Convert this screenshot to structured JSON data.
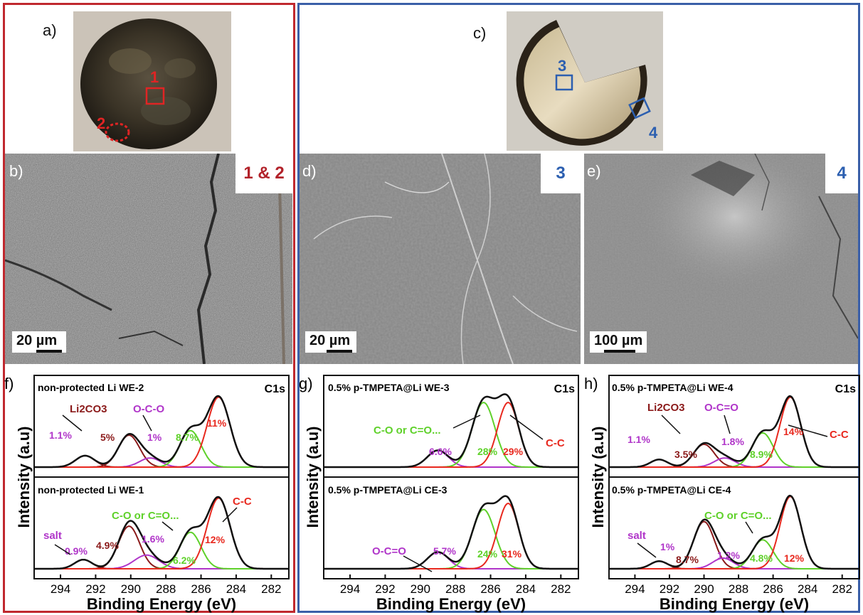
{
  "panel_labels": {
    "a": "a)",
    "b": "b)",
    "c": "c)",
    "d": "d)",
    "e": "e)",
    "f": "f)",
    "g": "g)",
    "h": "h)"
  },
  "photo_a": {
    "markers": [
      "1",
      "2"
    ],
    "marker_color": "#e02424"
  },
  "photo_c": {
    "markers": [
      "3",
      "4"
    ],
    "marker_color": "#2c5fb0"
  },
  "sem": {
    "b": {
      "tag": "1 & 2",
      "tag_color": "#b2222a",
      "scale": "20 µm"
    },
    "d": {
      "tag": "3",
      "tag_color": "#2c5fb0",
      "scale": "20 µm"
    },
    "e": {
      "tag": "4",
      "tag_color": "#2c5fb0",
      "scale": "100 µm"
    }
  },
  "colors": {
    "envelope": "#111111",
    "raw": "#111111",
    "c_c": "#e8281e",
    "c_o": "#5fd12a",
    "o_c_o": "#b035c9",
    "li2co3": "#8b1a1a",
    "salt": "#b035c9"
  },
  "chart_data": [
    {
      "type": "line",
      "id": "f",
      "xlabel": "Binding Energy (eV)",
      "ylabel": "Intensity (a.u)",
      "xlim": [
        295.5,
        281
      ],
      "xticks": [
        294,
        292,
        290,
        288,
        286,
        284,
        282
      ],
      "subplots": [
        {
          "title": "non-protected Li WE-2",
          "tag": "C1s",
          "components": [
            {
              "name": "salt",
              "center": 292.6,
              "height": 0.15,
              "sigma": 0.55,
              "color": "#8b1a1a"
            },
            {
              "name": "Li2CO3",
              "center": 290.1,
              "height": 0.42,
              "sigma": 0.6,
              "color": "#8b1a1a"
            },
            {
              "name": "O-C-O",
              "center": 288.9,
              "height": 0.12,
              "sigma": 0.6,
              "color": "#b035c9"
            },
            {
              "name": "C-O",
              "center": 286.6,
              "height": 0.48,
              "sigma": 0.6,
              "color": "#5fd12a"
            },
            {
              "name": "C-C",
              "center": 285.0,
              "height": 0.92,
              "sigma": 0.65,
              "color": "#e8281e"
            }
          ],
          "annotations": [
            {
              "text": "1.1%",
              "color": "#b035c9"
            },
            {
              "text": "Li2CO3",
              "color": "#8b1a1a"
            },
            {
              "text": "5%",
              "color": "#8b1a1a"
            },
            {
              "text": "O-C-O",
              "color": "#b035c9"
            },
            {
              "text": "1%",
              "color": "#b035c9"
            },
            {
              "text": "8.7%",
              "color": "#5fd12a"
            },
            {
              "text": "11%",
              "color": "#e8281e"
            }
          ]
        },
        {
          "title": "non-protected Li WE-1",
          "tag": "",
          "components": [
            {
              "name": "salt",
              "center": 292.7,
              "height": 0.12,
              "sigma": 0.5,
              "color": "#8b1a1a"
            },
            {
              "name": "Li2CO3",
              "center": 290.1,
              "height": 0.56,
              "sigma": 0.6,
              "color": "#8b1a1a"
            },
            {
              "name": "O-C-O",
              "center": 289.1,
              "height": 0.18,
              "sigma": 0.7,
              "color": "#b035c9"
            },
            {
              "name": "C-O",
              "center": 286.6,
              "height": 0.48,
              "sigma": 0.6,
              "color": "#5fd12a"
            },
            {
              "name": "C-C",
              "center": 285.0,
              "height": 0.93,
              "sigma": 0.65,
              "color": "#e8281e"
            }
          ],
          "annotations": [
            {
              "text": "salt",
              "color": "#b035c9"
            },
            {
              "text": "0.9%",
              "color": "#b035c9"
            },
            {
              "text": "4.9%",
              "color": "#8b1a1a"
            },
            {
              "text": "1.6%",
              "color": "#b035c9"
            },
            {
              "text": "C-O or C=O...",
              "color": "#5fd12a"
            },
            {
              "text": "6.2%",
              "color": "#5fd12a"
            },
            {
              "text": "C-C",
              "color": "#e8281e"
            },
            {
              "text": "12%",
              "color": "#e8281e"
            }
          ]
        }
      ]
    },
    {
      "type": "line",
      "id": "g",
      "xlabel": "Binding Energy (eV)",
      "ylabel": "Intensity (a.u)",
      "xlim": [
        295.5,
        281
      ],
      "xticks": [
        294,
        292,
        290,
        288,
        286,
        284,
        282
      ],
      "subplots": [
        {
          "title": "0.5% p-TMPETA@Li WE-3",
          "tag": "C1s",
          "components": [
            {
              "name": "O-C=O",
              "center": 289.0,
              "height": 0.22,
              "sigma": 0.6,
              "color": "#b035c9"
            },
            {
              "name": "C-O",
              "center": 286.4,
              "height": 0.85,
              "sigma": 0.65,
              "color": "#5fd12a"
            },
            {
              "name": "C-C",
              "center": 285.0,
              "height": 0.85,
              "sigma": 0.6,
              "color": "#e8281e"
            }
          ],
          "annotations": [
            {
              "text": "C-O or C=O...",
              "color": "#5fd12a"
            },
            {
              "text": "6.6%",
              "color": "#b035c9"
            },
            {
              "text": "28%",
              "color": "#5fd12a"
            },
            {
              "text": "29%",
              "color": "#e8281e"
            },
            {
              "text": "C-C",
              "color": "#e8281e"
            }
          ]
        },
        {
          "title": "0.5% p-TMPETA@Li CE-3",
          "tag": "",
          "components": [
            {
              "name": "O-C=O",
              "center": 289.0,
              "height": 0.22,
              "sigma": 0.6,
              "color": "#b035c9"
            },
            {
              "name": "C-O",
              "center": 286.4,
              "height": 0.78,
              "sigma": 0.65,
              "color": "#5fd12a"
            },
            {
              "name": "C-C",
              "center": 285.0,
              "height": 0.86,
              "sigma": 0.6,
              "color": "#e8281e"
            }
          ],
          "annotations": [
            {
              "text": "O-C=O",
              "color": "#b035c9"
            },
            {
              "text": "5.7%",
              "color": "#b035c9"
            },
            {
              "text": "24%",
              "color": "#5fd12a"
            },
            {
              "text": "31%",
              "color": "#e8281e"
            }
          ]
        }
      ]
    },
    {
      "type": "line",
      "id": "h",
      "xlabel": "Binding Energy (eV)",
      "ylabel": "Intensity (a.u)",
      "xlim": [
        295.5,
        281
      ],
      "xticks": [
        294,
        292,
        290,
        288,
        286,
        284,
        282
      ],
      "subplots": [
        {
          "title": "0.5% p-TMPETA@Li WE-4",
          "tag": "C1s",
          "components": [
            {
              "name": "salt",
              "center": 292.6,
              "height": 0.1,
              "sigma": 0.5,
              "color": "#8b1a1a"
            },
            {
              "name": "Li2CO3",
              "center": 290.0,
              "height": 0.3,
              "sigma": 0.6,
              "color": "#8b1a1a"
            },
            {
              "name": "O-C=O",
              "center": 288.8,
              "height": 0.12,
              "sigma": 0.6,
              "color": "#b035c9"
            },
            {
              "name": "C-O",
              "center": 286.6,
              "height": 0.45,
              "sigma": 0.6,
              "color": "#5fd12a"
            },
            {
              "name": "C-C",
              "center": 285.0,
              "height": 0.92,
              "sigma": 0.6,
              "color": "#e8281e"
            }
          ],
          "annotations": [
            {
              "text": "1.1%",
              "color": "#b035c9"
            },
            {
              "text": "Li2CO3",
              "color": "#8b1a1a"
            },
            {
              "text": "3.5%",
              "color": "#8b1a1a"
            },
            {
              "text": "O-C=O",
              "color": "#b035c9"
            },
            {
              "text": "1.8%",
              "color": "#b035c9"
            },
            {
              "text": "8.9%",
              "color": "#5fd12a"
            },
            {
              "text": "14%",
              "color": "#e8281e"
            },
            {
              "text": "C-C",
              "color": "#e8281e"
            }
          ]
        },
        {
          "title": "0.5% p-TMPETA@Li CE-4",
          "tag": "",
          "components": [
            {
              "name": "salt",
              "center": 292.6,
              "height": 0.1,
              "sigma": 0.5,
              "color": "#8b1a1a"
            },
            {
              "name": "Li2CO3",
              "center": 290.0,
              "height": 0.62,
              "sigma": 0.6,
              "color": "#8b1a1a"
            },
            {
              "name": "O-C=O",
              "center": 288.9,
              "height": 0.14,
              "sigma": 0.6,
              "color": "#b035c9"
            },
            {
              "name": "C-O",
              "center": 286.6,
              "height": 0.38,
              "sigma": 0.6,
              "color": "#5fd12a"
            },
            {
              "name": "C-C",
              "center": 285.0,
              "height": 0.95,
              "sigma": 0.6,
              "color": "#e8281e"
            }
          ],
          "annotations": [
            {
              "text": "salt",
              "color": "#b035c9"
            },
            {
              "text": "1%",
              "color": "#b035c9"
            },
            {
              "text": "C-O or C=O...",
              "color": "#5fd12a"
            },
            {
              "text": "8.7%",
              "color": "#8b1a1a"
            },
            {
              "text": "1.2%",
              "color": "#b035c9"
            },
            {
              "text": "4.8%",
              "color": "#5fd12a"
            },
            {
              "text": "12%",
              "color": "#e8281e"
            }
          ]
        }
      ]
    }
  ]
}
